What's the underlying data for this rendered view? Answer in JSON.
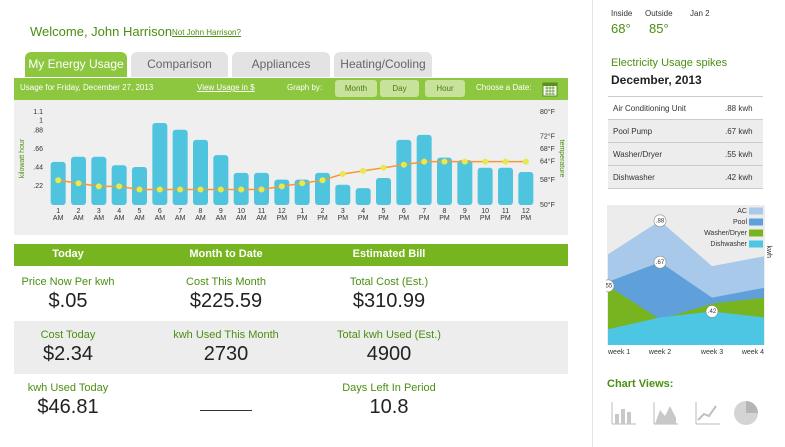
{
  "header": {
    "welcome": "Welcome, John Harrison",
    "not_user": "Not John Harrison?"
  },
  "tabs": [
    "My Energy Usage",
    "Comparison",
    "Appliances",
    "Heating/Cooling"
  ],
  "toolbar": {
    "usage_for": "Usage for Friday, December 27, 2013",
    "view_link": "View Usage in $",
    "graph_by": "Graph by:",
    "buttons": [
      "Month",
      "Day",
      "Hour"
    ],
    "choose_date": "Choose a Date:"
  },
  "summary": {
    "headers": [
      "Today",
      "Month to Date",
      "Estimated Bill"
    ],
    "rows": [
      [
        {
          "label": "Price Now Per kwh",
          "value": "$.05"
        },
        {
          "label": "Cost This Month",
          "value": "$225.59"
        },
        {
          "label": "Total Cost (Est.)",
          "value": "$310.99"
        }
      ],
      [
        {
          "label": "Cost Today",
          "value": "$2.34"
        },
        {
          "label": "kwh Used This Month",
          "value": "2730"
        },
        {
          "label": "Total kwh Used (Est.)",
          "value": "4900"
        }
      ],
      [
        {
          "label": "kwh Used Today",
          "value": "$46.81"
        },
        null,
        {
          "label": "Days Left In Period",
          "value": "10.8"
        }
      ]
    ]
  },
  "weather": [
    {
      "label": "Inside",
      "value": "68°"
    },
    {
      "label": "Outside",
      "value": "85°"
    },
    {
      "label": "Jan 2"
    }
  ],
  "spikes": {
    "title": "Electricity Usage spikes",
    "period": "December, 2013",
    "rows": [
      {
        "name": "Air Conditioning Unit",
        "value": ".88 kwh"
      },
      {
        "name": "Pool Pump",
        "value": ".67 kwh"
      },
      {
        "name": "Washer/Dryer",
        "value": ".55 kwh"
      },
      {
        "name": "Dishwasher",
        "value": ".42 kwh"
      }
    ]
  },
  "chart_views": {
    "title": "Chart Views:"
  },
  "chart_data": [
    {
      "type": "bar",
      "ylabel": "kilowatt hour",
      "y2label": "temperature",
      "categories": [
        "1 AM",
        "2 AM",
        "3 AM",
        "4 AM",
        "5 AM",
        "6 AM",
        "7 AM",
        "8 AM",
        "9 AM",
        "10 AM",
        "11 AM",
        "12 PM",
        "1 PM",
        "2 PM",
        "3 PM",
        "4 PM",
        "5 PM",
        "6 PM",
        "7 PM",
        "8 PM",
        "9 PM",
        "10 PM",
        "11 PM",
        "12 PM"
      ],
      "series": [
        {
          "type": "bar",
          "color": "#4fc4de",
          "values": [
            0.51,
            0.57,
            0.57,
            0.47,
            0.45,
            0.97,
            0.89,
            0.77,
            0.59,
            0.38,
            0.38,
            0.3,
            0.3,
            0.38,
            0.24,
            0.2,
            0.32,
            0.77,
            0.83,
            0.56,
            0.53,
            0.44,
            0.44,
            0.39
          ]
        },
        {
          "type": "line",
          "axis": "y2",
          "color": "#f29a3a",
          "marker_color": "#e6ea4c",
          "values": [
            58,
            57,
            56,
            56,
            55,
            55,
            55,
            55,
            55,
            55,
            55,
            56,
            57,
            58,
            60,
            61,
            62,
            63,
            64,
            64,
            64,
            64,
            64,
            64
          ]
        }
      ],
      "ylim": [
        0,
        1.1
      ],
      "yticks": [
        1.1,
        1,
        {
          "value": 0.88,
          "label": ".88"
        },
        {
          "value": 0.66,
          "label": ".66"
        },
        {
          "value": 0.44,
          "label": ".44"
        },
        {
          "value": 0.22,
          "label": ".22"
        }
      ],
      "y2lim": [
        50,
        80
      ],
      "y2ticks": [
        {
          "value": 80,
          "label": "80°F"
        },
        {
          "value": 72,
          "label": "72°F"
        },
        {
          "value": 68,
          "label": "68°F"
        },
        {
          "value": 64,
          "label": "64°F"
        },
        {
          "value": 58,
          "label": "58°F"
        },
        {
          "value": 50,
          "label": "50°F"
        }
      ]
    },
    {
      "type": "area",
      "ylabel": "kwh",
      "legend": "upper right",
      "categories": [
        "week 1",
        "week 2",
        "week 3",
        "week 4"
      ],
      "series": [
        {
          "name": "AC",
          "color": "#a9c9ea",
          "values": [
            0.71,
            0.88,
            0.65,
            0.7
          ],
          "value_labels": [
            null,
            ".88",
            null,
            null
          ]
        },
        {
          "name": "Pool",
          "color": "#5fa0db",
          "values": [
            0.57,
            0.67,
            0.49,
            0.54
          ],
          "value_labels": [
            null,
            ".67",
            null,
            null
          ]
        },
        {
          "name": "Washer/Dryer",
          "color": "#77b41f",
          "values": [
            0.55,
            0.38,
            0.46,
            0.49
          ],
          "value_labels": [
            ".55",
            null,
            null,
            null
          ]
        },
        {
          "name": "Dishwasher",
          "color": "#4cc6e2",
          "values": [
            0.33,
            0.39,
            0.42,
            0.39
          ],
          "value_labels": [
            null,
            null,
            ".42",
            null
          ]
        }
      ]
    }
  ]
}
